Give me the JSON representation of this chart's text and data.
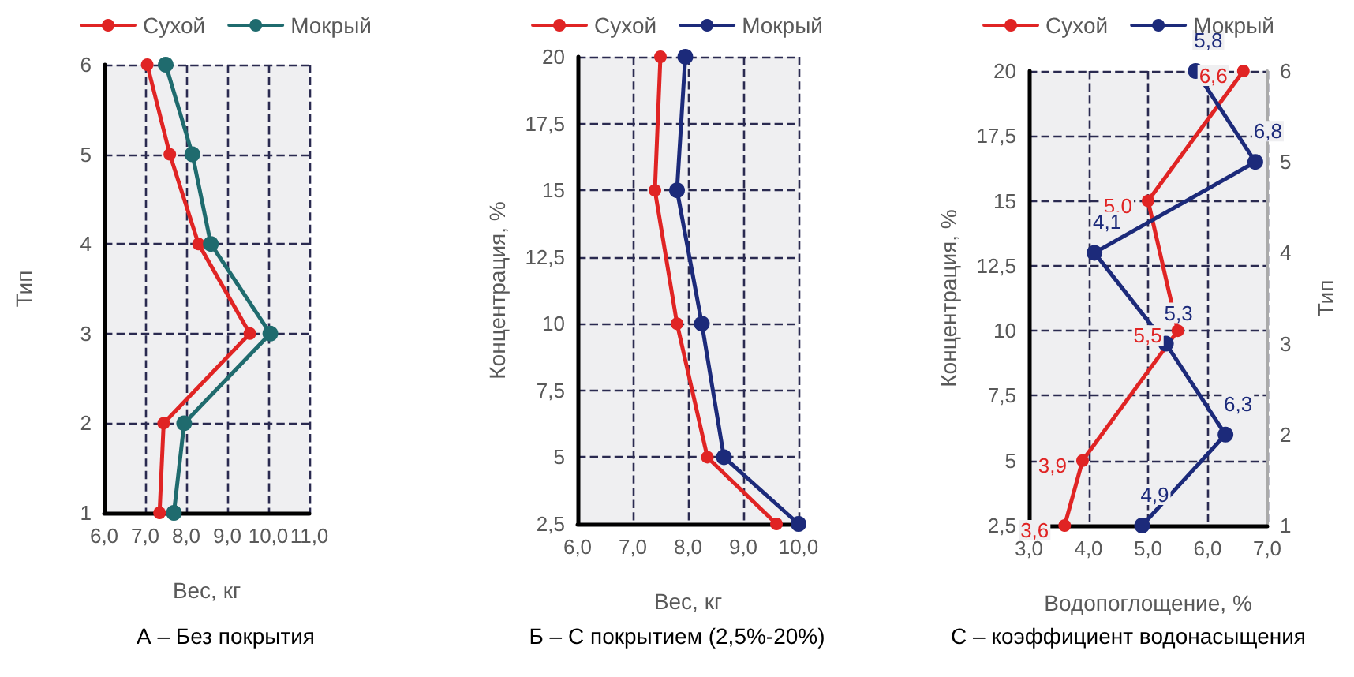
{
  "chart_data": [
    {
      "type": "line",
      "orientation": "horizontal",
      "title": "А – Без покрытия",
      "xlabel": "Вес, кг",
      "ylabel": "Тип",
      "xlim": [
        6,
        11
      ],
      "xticks": [
        {
          "value": 6,
          "label": "6,0"
        },
        {
          "value": 7,
          "label": "7,0"
        },
        {
          "value": 8,
          "label": "8,0"
        },
        {
          "value": 9,
          "label": "9,0"
        },
        {
          "value": 10,
          "label": "10,0"
        },
        {
          "value": 11,
          "label": "11,0"
        }
      ],
      "ylim": [
        1,
        6
      ],
      "yticks": [
        1,
        2,
        3,
        4,
        5,
        6
      ],
      "series": [
        {
          "name": "Сухой",
          "color": "#e02424",
          "values": [
            7.35,
            7.45,
            9.55,
            8.3,
            7.6,
            7.05
          ],
          "x": [
            1,
            2,
            3,
            4,
            5,
            6
          ]
        },
        {
          "name": "Мокрый",
          "color": "#1f6b6e",
          "values": [
            7.7,
            7.95,
            10.05,
            8.6,
            8.15,
            7.5
          ],
          "x": [
            1,
            2,
            3,
            4,
            5,
            6
          ]
        }
      ],
      "grid": true,
      "legend": "top",
      "marker": "circle",
      "line_style": "solid"
    },
    {
      "type": "line",
      "orientation": "horizontal",
      "title": "Б – С покрытием (2,5%-20%)",
      "xlabel": "Вес, кг",
      "ylabel": "Концентрация, %",
      "xlim": [
        6,
        10
      ],
      "xticks": [
        {
          "value": 6,
          "label": "6,0"
        },
        {
          "value": 7,
          "label": "7,0"
        },
        {
          "value": 8,
          "label": "8,0"
        },
        {
          "value": 9,
          "label": "9,0"
        },
        {
          "value": 10,
          "label": "10,0"
        }
      ],
      "ylim": [
        2.5,
        20
      ],
      "yticks": [
        {
          "value": 2.5,
          "label": "2,5"
        },
        5,
        {
          "value": 7.5,
          "label": "7,5"
        },
        10,
        {
          "value": 12.5,
          "label": "12,5"
        },
        15,
        {
          "value": 17.5,
          "label": "17,5"
        },
        20
      ],
      "series": [
        {
          "name": "Сухой",
          "color": "#e02424",
          "values": [
            9.6,
            8.35,
            7.8,
            7.4,
            7.5
          ],
          "x": [
            2.5,
            5,
            10,
            15,
            20
          ]
        },
        {
          "name": "Мокрый",
          "color": "#1c2a7a",
          "values": [
            10.0,
            8.65,
            8.25,
            7.8,
            7.95
          ],
          "x": [
            2.5,
            5,
            10,
            15,
            20
          ]
        }
      ],
      "grid": true,
      "legend": "top",
      "marker": "circle",
      "line_style": "solid"
    },
    {
      "type": "line",
      "title": "С – коэффициент водонасыщения",
      "xlabel": "Водопоглощение, %",
      "ylabel": "Концентрация, %",
      "y2label": "Тип",
      "xlim": [
        3,
        7
      ],
      "xticks": [
        {
          "value": 3,
          "label": "3,0"
        },
        {
          "value": 4,
          "label": "4,0"
        },
        {
          "value": 5,
          "label": "5,0"
        },
        {
          "value": 6,
          "label": "6,0"
        },
        {
          "value": 7,
          "label": "7,0"
        }
      ],
      "ylim": [
        2.5,
        20
      ],
      "yticks": [
        {
          "value": 2.5,
          "label": "2,5"
        },
        5,
        {
          "value": 7.5,
          "label": "7,5"
        },
        10,
        {
          "value": 12.5,
          "label": "12,5"
        },
        15,
        {
          "value": 17.5,
          "label": "17,5"
        },
        20
      ],
      "y2lim": [
        1,
        6
      ],
      "y2ticks": [
        1,
        2,
        3,
        4,
        5,
        6
      ],
      "series": [
        {
          "name": "Сухой",
          "color": "#e02424",
          "x": [
            3.6,
            3.9,
            5.5,
            5.0,
            6.6
          ],
          "values": [
            2.5,
            5,
            10,
            15,
            20
          ]
        },
        {
          "name": "Мокрый",
          "color": "#1c2a7a",
          "axis": "y2",
          "x": [
            4.9,
            6.3,
            5.3,
            4.1,
            6.8,
            5.8
          ],
          "values": [
            1,
            2,
            3,
            4,
            5,
            6
          ]
        }
      ],
      "annotations": [
        {
          "text": "3,6",
          "x": 3.6,
          "y": 2.5
        },
        {
          "text": "3,9",
          "x": 3.9,
          "y": 5
        },
        {
          "text": "5,5",
          "x": 5.5,
          "y": 10
        },
        {
          "text": "5,0",
          "x": 5.0,
          "y": 15
        },
        {
          "text": "6,6",
          "x": 6.6,
          "y": 20
        },
        "4,9",
        "6,3",
        "5,3",
        "4,1",
        "6,8",
        "5,8"
      ],
      "grid": true,
      "legend": "top",
      "marker": "circle",
      "line_style": "solid"
    }
  ]
}
